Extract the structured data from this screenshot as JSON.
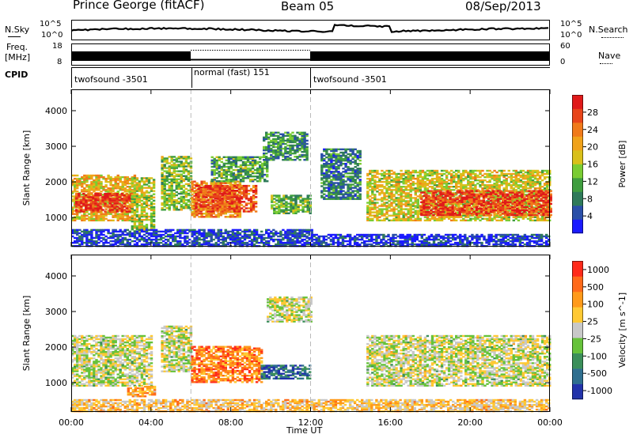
{
  "header": {
    "station": "Prince George (fitACF)",
    "beam": "Beam 05",
    "date": "08/Sep/2013"
  },
  "nsky_panel": {
    "left_label": "N.Sky",
    "right_label": "N.Search",
    "left_ticks": [
      "10^5",
      "10^0"
    ],
    "right_ticks": [
      "10^5",
      "10^0"
    ]
  },
  "freq_panel": {
    "left_label": "Freq.",
    "left_unit": "[MHz]",
    "right_label": "Nave",
    "left_ticks": [
      "18",
      "8"
    ],
    "right_ticks": [
      "60",
      "0"
    ]
  },
  "cpid": {
    "label": "CPID",
    "segments": [
      {
        "name": "twofsound -3501",
        "start_hour": 0,
        "end_hour": 6
      },
      {
        "name": "normal (fast) 151",
        "start_hour": 6,
        "end_hour": 12
      },
      {
        "name": "twofsound -3501",
        "start_hour": 12,
        "end_hour": 24
      }
    ]
  },
  "chart_data": [
    {
      "type": "heatmap",
      "title": "",
      "xlabel": "Time UT",
      "ylabel": "Slant Range [km]",
      "xlim": [
        0,
        24
      ],
      "ylim": [
        180,
        4600
      ],
      "x_ticks": [
        "00:00",
        "04:00",
        "08:00",
        "12:00",
        "16:00",
        "20:00",
        "00:00"
      ],
      "y_ticks": [
        "1000",
        "2000",
        "3000",
        "4000"
      ],
      "colorbar": {
        "label": "Power [dB]",
        "ticks": [
          "4",
          "8",
          "12",
          "16",
          "20",
          "24",
          "28"
        ],
        "colors": [
          "#1a1aff",
          "#2a4fa8",
          "#2f7a5a",
          "#3f9e3f",
          "#7acc33",
          "#d9c01a",
          "#f0a21a",
          "#f07a1a",
          "#e8451a",
          "#e01a1a"
        ]
      },
      "regions": [
        {
          "t0": 0.0,
          "t1": 3.2,
          "r0": 900,
          "r1": 2200,
          "level": 0.62
        },
        {
          "t0": 0.2,
          "t1": 3.0,
          "r0": 1150,
          "r1": 1650,
          "level": 0.92
        },
        {
          "t0": 3.0,
          "t1": 4.2,
          "r0": 600,
          "r1": 2100,
          "level": 0.5
        },
        {
          "t0": 4.5,
          "t1": 6.0,
          "r0": 1200,
          "r1": 2700,
          "level": 0.45
        },
        {
          "t0": 6.0,
          "t1": 8.5,
          "r0": 1000,
          "r1": 2000,
          "level": 0.7
        },
        {
          "t0": 6.2,
          "t1": 9.3,
          "r0": 1150,
          "r1": 1900,
          "level": 0.85
        },
        {
          "t0": 7.0,
          "t1": 9.8,
          "r0": 2000,
          "r1": 2700,
          "level": 0.35
        },
        {
          "t0": 9.6,
          "t1": 11.8,
          "r0": 2600,
          "r1": 3400,
          "level": 0.3
        },
        {
          "t0": 10.0,
          "t1": 12.0,
          "r0": 1100,
          "r1": 1600,
          "level": 0.4
        },
        {
          "t0": 12.5,
          "t1": 14.5,
          "r0": 1500,
          "r1": 2900,
          "level": 0.25
        },
        {
          "t0": 14.8,
          "t1": 24.0,
          "r0": 900,
          "r1": 2300,
          "level": 0.55
        },
        {
          "t0": 17.5,
          "t1": 24.0,
          "r0": 1050,
          "r1": 1750,
          "level": 0.88
        },
        {
          "t0": 0.0,
          "t1": 12.0,
          "r0": 180,
          "r1": 650,
          "level": 0.12
        },
        {
          "t0": 12.0,
          "t1": 24.0,
          "r0": 180,
          "r1": 500,
          "level": 0.08
        }
      ]
    },
    {
      "type": "heatmap",
      "title": "",
      "xlabel": "Time UT",
      "ylabel": "Slant Range [km]",
      "xlim": [
        0,
        24
      ],
      "ylim": [
        180,
        4600
      ],
      "x_ticks": [
        "00:00",
        "04:00",
        "08:00",
        "12:00",
        "16:00",
        "20:00",
        "00:00"
      ],
      "y_ticks": [
        "1000",
        "2000",
        "3000",
        "4000"
      ],
      "colorbar": {
        "label": "Velocity [m s^-1]",
        "ticks": [
          "1000",
          "500",
          "100",
          "25",
          "-25",
          "-100",
          "-500",
          "-1000"
        ],
        "colors": [
          "#2233aa",
          "#2f6f8f",
          "#3b8f5a",
          "#66c23a",
          "#c8c8c8",
          "#ffc933",
          "#ff9a1a",
          "#ff6a1a",
          "#ff2a1a"
        ]
      },
      "regions": [
        {
          "t0": 0.0,
          "t1": 4.0,
          "r0": 900,
          "r1": 2300,
          "level": 0.5
        },
        {
          "t0": 2.8,
          "t1": 4.2,
          "r0": 600,
          "r1": 900,
          "level": 0.72
        },
        {
          "t0": 4.5,
          "t1": 6.0,
          "r0": 1300,
          "r1": 2600,
          "level": 0.5
        },
        {
          "t0": 6.0,
          "t1": 9.5,
          "r0": 1000,
          "r1": 2000,
          "level": 0.78
        },
        {
          "t0": 9.5,
          "t1": 11.9,
          "r0": 1100,
          "r1": 1500,
          "level": 0.15
        },
        {
          "t0": 9.8,
          "t1": 12.0,
          "r0": 2700,
          "r1": 3400,
          "level": 0.5
        },
        {
          "t0": 14.8,
          "t1": 24.0,
          "r0": 900,
          "r1": 2300,
          "level": 0.5
        },
        {
          "t0": 0.0,
          "t1": 24.0,
          "r0": 180,
          "r1": 500,
          "level": 0.62
        }
      ]
    }
  ]
}
